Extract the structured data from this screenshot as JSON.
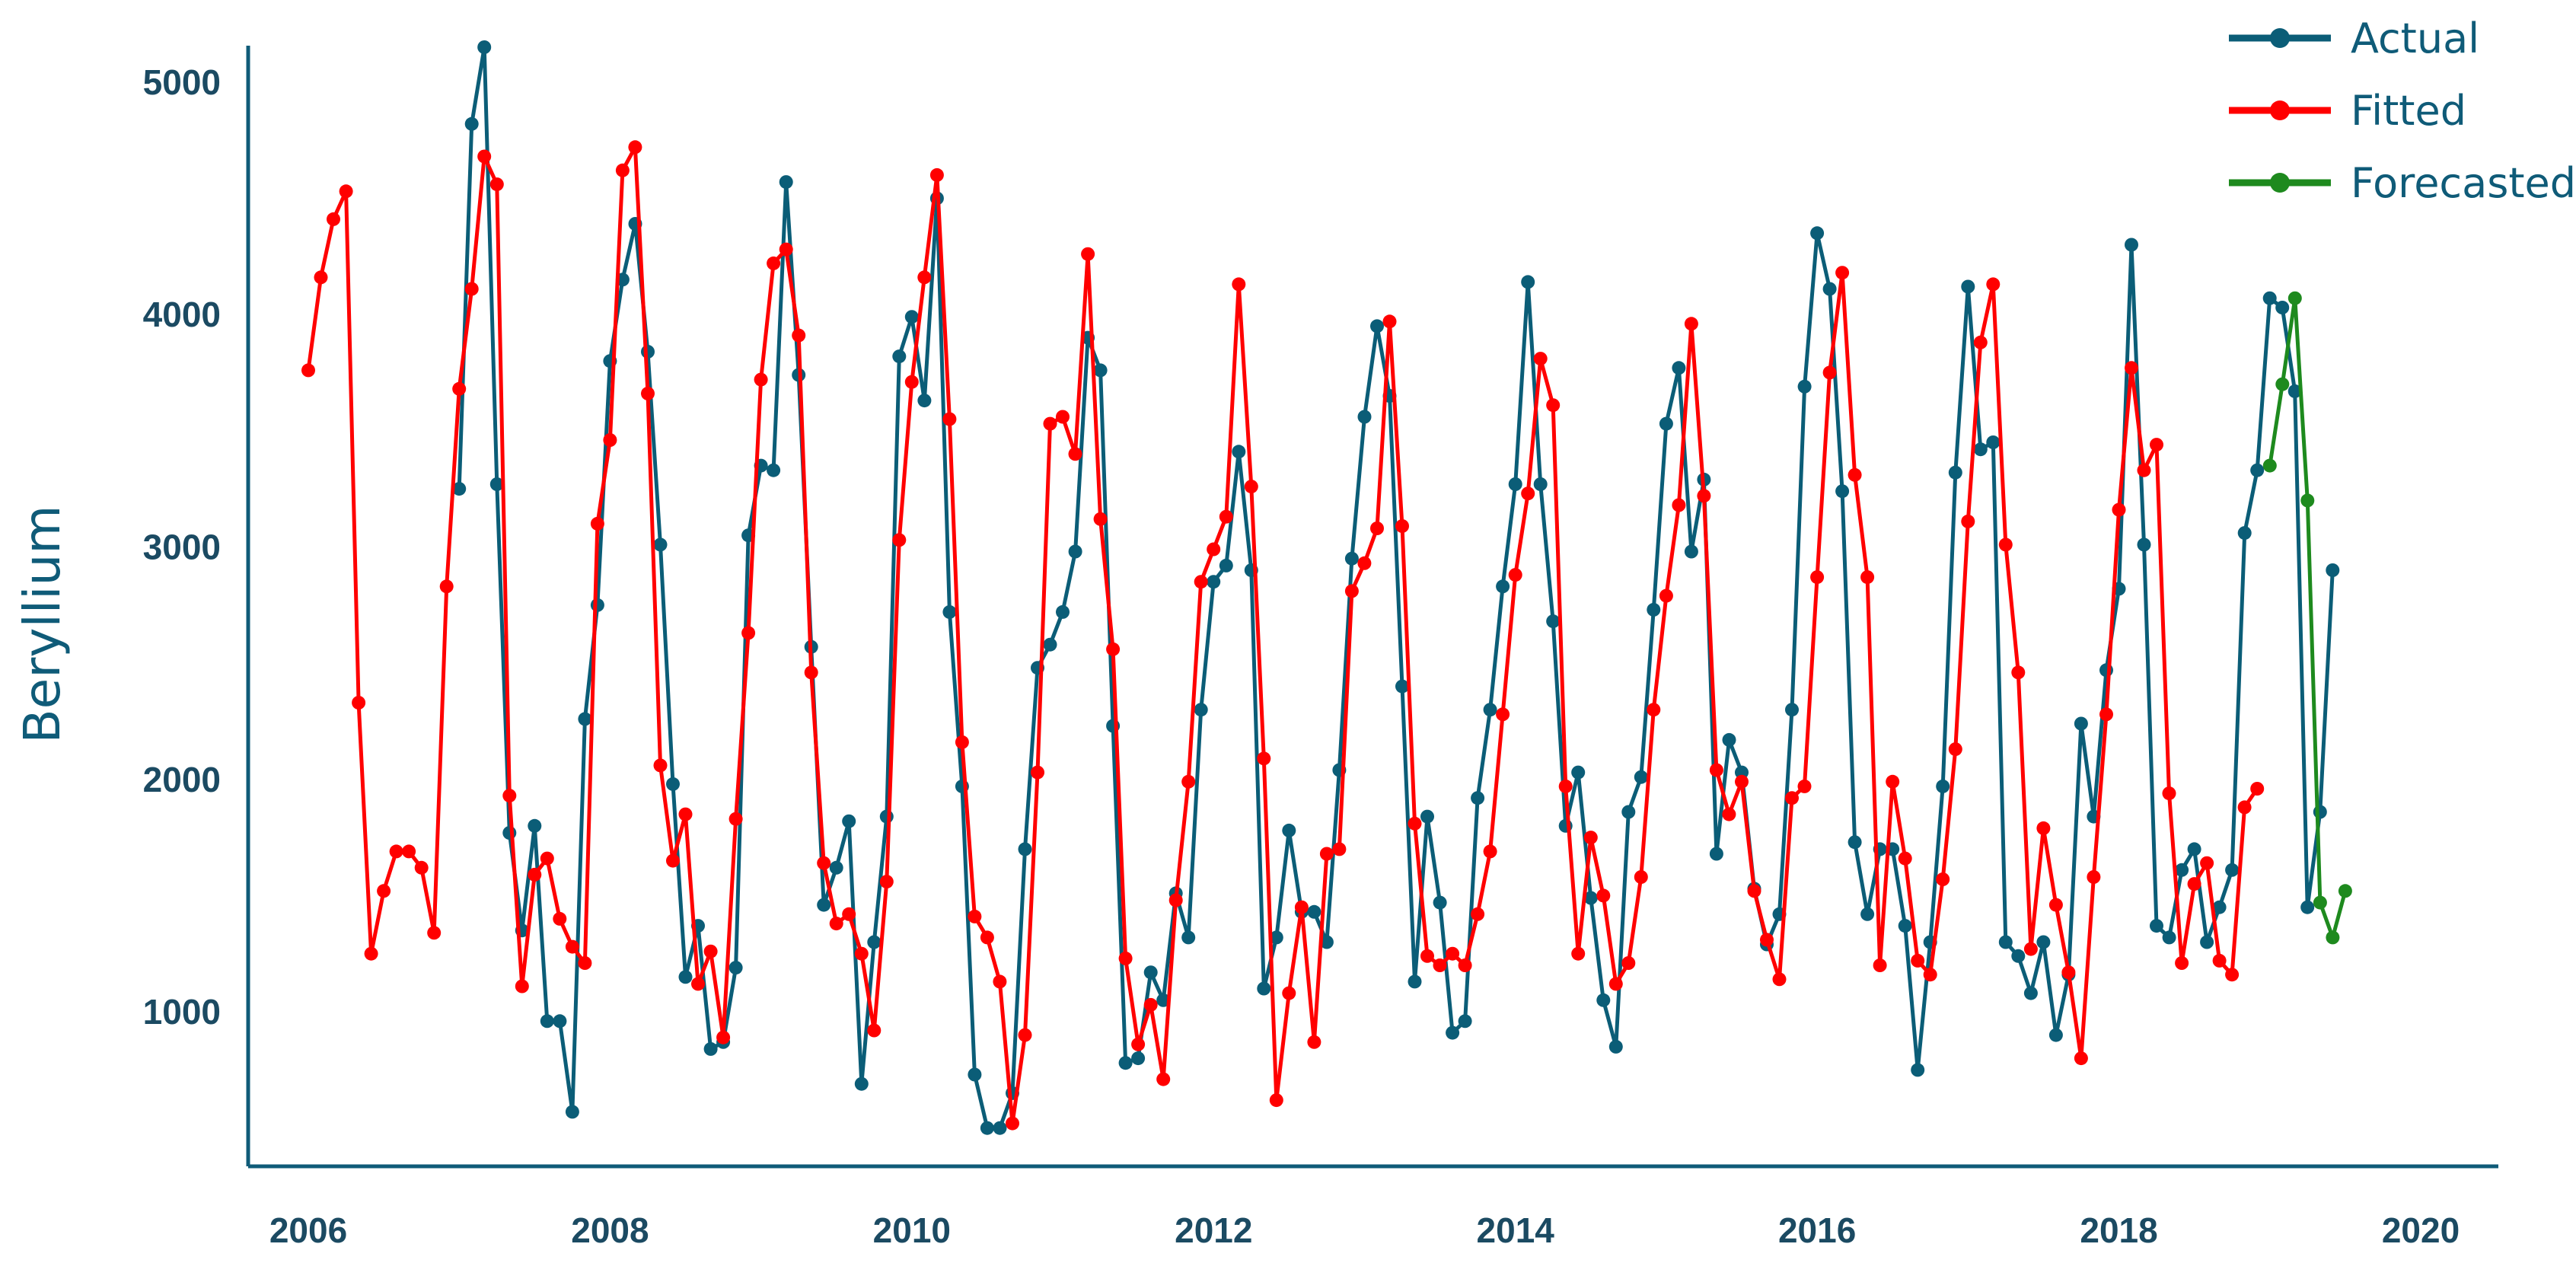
{
  "chart_data": {
    "type": "line",
    "ylabel": "Beryllium",
    "xlabel": "",
    "title": "",
    "x_ticks": [
      "2006",
      "2008",
      "2010",
      "2012",
      "2014",
      "2016",
      "2018",
      "2020"
    ],
    "y_ticks": [
      1000,
      2000,
      3000,
      4000,
      5000
    ],
    "xlim": [
      2006,
      2020
    ],
    "ylim": [
      450,
      5150
    ],
    "legend_position": "top-right",
    "grid": false,
    "series": [
      {
        "name": "Actual",
        "color": "#0b5d77",
        "x_start": 2007.0,
        "step": 0.08333,
        "values": [
          3250,
          4820,
          5150,
          3270,
          1770,
          1350,
          1800,
          960,
          960,
          570,
          2260,
          2750,
          3800,
          4150,
          4390,
          3840,
          3010,
          1980,
          1150,
          1370,
          840,
          870,
          1190,
          3050,
          3350,
          3330,
          4570,
          3740,
          2570,
          1460,
          1620,
          1820,
          690,
          1300,
          1840,
          3820,
          3990,
          3630,
          4500,
          2720,
          1970,
          730,
          500,
          500,
          650,
          1700,
          2480,
          2580,
          2720,
          2980,
          3900,
          3760,
          2230,
          780,
          800,
          1170,
          1050,
          1510,
          1320,
          2300,
          2850,
          2920,
          3410,
          2900,
          1100,
          1320,
          1780,
          1430,
          1430,
          1300,
          2040,
          2950,
          3560,
          3950,
          3650,
          2400,
          1130,
          1840,
          1470,
          910,
          960,
          1920,
          2300,
          2830,
          3270,
          4140,
          3270,
          2680,
          1800,
          2030,
          1490,
          1050,
          850,
          1860,
          2010,
          2730,
          3530,
          3770,
          2980,
          3290,
          1680,
          2170,
          2030,
          1530,
          1290,
          1420,
          2300,
          3690,
          4350,
          4110,
          3240,
          1730,
          1420,
          1700,
          1700,
          1370,
          750,
          1300,
          1970,
          3320,
          4120,
          3420,
          3450,
          1300,
          1240,
          1080,
          1300,
          900,
          1160,
          2240,
          1840,
          2470,
          2820,
          4300,
          3010,
          1370,
          1320,
          1610,
          1700,
          1300,
          1450,
          1610,
          3060,
          3330,
          4070,
          4030,
          3670,
          1450,
          1860,
          2900
        ]
      },
      {
        "name": "Fitted",
        "color": "#ff0000",
        "x_start": 2006.0,
        "step": 0.08333,
        "values": [
          3760,
          4160,
          4410,
          4530,
          2330,
          1250,
          1520,
          1690,
          1690,
          1620,
          1340,
          2830,
          3680,
          4110,
          4680,
          4560,
          1930,
          1110,
          1590,
          1660,
          1400,
          1280,
          1210,
          3100,
          3460,
          4620,
          4720,
          3660,
          2060,
          1650,
          1850,
          1120,
          1260,
          890,
          1830,
          2630,
          3720,
          4220,
          4280,
          3910,
          2460,
          1640,
          1380,
          1420,
          1250,
          920,
          1560,
          3030,
          3710,
          4160,
          4600,
          3550,
          2160,
          1410,
          1320,
          1130,
          520,
          900,
          2030,
          3530,
          3560,
          3400,
          4260,
          3120,
          2560,
          1230,
          860,
          1030,
          710,
          1480,
          1990,
          2850,
          2990,
          3130,
          4130,
          3260,
          2090,
          620,
          1080,
          1450,
          870,
          1680,
          1700,
          2810,
          2930,
          3080,
          3970,
          3090,
          1810,
          1240,
          1200,
          1250,
          1200,
          1420,
          1690,
          2280,
          2880,
          3230,
          3810,
          3610,
          1970,
          1250,
          1750,
          1500,
          1120,
          1210,
          1580,
          2300,
          2790,
          3180,
          3960,
          3220,
          2040,
          1850,
          1990,
          1520,
          1310,
          1140,
          1920,
          1970,
          2870,
          3750,
          4180,
          3310,
          2870,
          1200,
          1990,
          1660,
          1220,
          1160,
          1570,
          2130,
          3110,
          3880,
          4130,
          3010,
          2460,
          1270,
          1790,
          1460,
          1170,
          800,
          1580,
          2280,
          3160,
          3770,
          3330,
          3440,
          1940,
          1210,
          1550,
          1640,
          1220,
          1160,
          1880,
          1960
        ]
      },
      {
        "name": "Forecasted",
        "color": "#1e8a1e",
        "x_start": 2019.0,
        "step": 0.08333,
        "values": [
          3350,
          3700,
          4070,
          3200,
          1470,
          1320,
          1520
        ]
      }
    ]
  }
}
